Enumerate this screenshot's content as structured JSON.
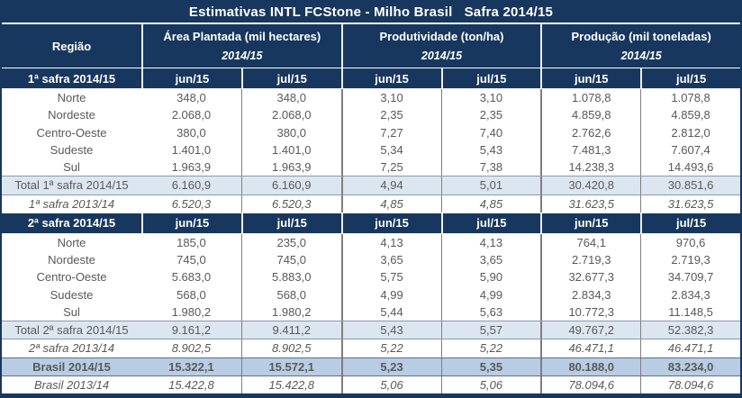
{
  "title": "Estimativas INTL FCStone - Milho Brasil   Safra 2014/15",
  "header": {
    "region_label": "Região",
    "groups": [
      {
        "label": "Área Plantada (mil hectares)",
        "season": "2014/15"
      },
      {
        "label": "Produtividade (ton/ha)",
        "season": "2014/15"
      },
      {
        "label": "Produção (mil toneladas)",
        "season": "2014/15"
      }
    ],
    "sub_columns": [
      "jun/15",
      "jul/15"
    ]
  },
  "colors": {
    "navy": "#17375E",
    "total_row_bg": "#DCE6F1",
    "brasil_row_bg": "#B8CCE4",
    "text_gray": "#595959",
    "grid_line": "#7F7F7F"
  },
  "chart_data": {
    "type": "table",
    "title": "Estimativas INTL FCStone - Milho Brasil Safra 2014/15",
    "column_groups": [
      "Área Plantada (mil hectares) 2014/15",
      "Produtividade (ton/ha) 2014/15",
      "Produção (mil toneladas) 2014/15"
    ],
    "columns": [
      "Região",
      "jun/15",
      "jul/15",
      "jun/15",
      "jul/15",
      "jun/15",
      "jul/15"
    ],
    "rows": [
      {
        "type": "section_header",
        "label": "1ª safra 2014/15"
      },
      {
        "type": "data",
        "label": "Norte",
        "values": [
          "348,0",
          "348,0",
          "3,10",
          "3,10",
          "1.078,8",
          "1.078,8"
        ]
      },
      {
        "type": "data",
        "label": "Nordeste",
        "values": [
          "2.068,0",
          "2.068,0",
          "2,35",
          "2,35",
          "4.859,8",
          "4.859,8"
        ]
      },
      {
        "type": "data",
        "label": "Centro-Oeste",
        "values": [
          "380,0",
          "380,0",
          "7,27",
          "7,40",
          "2.762,6",
          "2.812,0"
        ]
      },
      {
        "type": "data",
        "label": "Sudeste",
        "values": [
          "1.401,0",
          "1.401,0",
          "5,34",
          "5,43",
          "7.481,3",
          "7.607,4"
        ]
      },
      {
        "type": "data",
        "label": "Sul",
        "values": [
          "1.963,9",
          "1.963,9",
          "7,25",
          "7,38",
          "14.238,3",
          "14.493,6"
        ]
      },
      {
        "type": "total",
        "label": "Total 1ª safra 2014/15",
        "values": [
          "6.160,9",
          "6.160,9",
          "4,94",
          "5,01",
          "30.420,8",
          "30.851,6"
        ]
      },
      {
        "type": "previous",
        "label": "1ª safra 2013/14",
        "values": [
          "6.520,3",
          "6.520,3",
          "4,85",
          "4,85",
          "31.623,5",
          "31.623,5"
        ]
      },
      {
        "type": "section_header",
        "label": "2ª safra 2014/15"
      },
      {
        "type": "data",
        "label": "Norte",
        "values": [
          "185,0",
          "235,0",
          "4,13",
          "4,13",
          "764,1",
          "970,6"
        ]
      },
      {
        "type": "data",
        "label": "Nordeste",
        "values": [
          "745,0",
          "745,0",
          "3,65",
          "3,65",
          "2.719,3",
          "2.719,3"
        ]
      },
      {
        "type": "data",
        "label": "Centro-Oeste",
        "values": [
          "5.683,0",
          "5.883,0",
          "5,75",
          "5,90",
          "32.677,3",
          "34.709,7"
        ]
      },
      {
        "type": "data",
        "label": "Sudeste",
        "values": [
          "568,0",
          "568,0",
          "4,99",
          "4,99",
          "2.834,3",
          "2.834,3"
        ]
      },
      {
        "type": "data",
        "label": "Sul",
        "values": [
          "1.980,2",
          "1.980,2",
          "5,44",
          "5,63",
          "10.772,3",
          "11.148,5"
        ]
      },
      {
        "type": "total",
        "label": "Total 2ª safra 2014/15",
        "values": [
          "9.161,2",
          "9.411,2",
          "5,43",
          "5,57",
          "49.767,2",
          "52.382,3"
        ]
      },
      {
        "type": "previous",
        "label": "2ª safra 2013/14",
        "values": [
          "8.902,5",
          "8.902,5",
          "5,22",
          "5,22",
          "46.471,1",
          "46.471,1"
        ]
      },
      {
        "type": "brasil_total",
        "label": "Brasil 2014/15",
        "values": [
          "15.322,1",
          "15.572,1",
          "5,23",
          "5,35",
          "80.188,0",
          "83.234,0"
        ]
      },
      {
        "type": "previous",
        "label": "Brasil 2013/14",
        "values": [
          "15.422,8",
          "15.422,8",
          "5,06",
          "5,06",
          "78.094,6",
          "78.094,6"
        ]
      }
    ]
  }
}
